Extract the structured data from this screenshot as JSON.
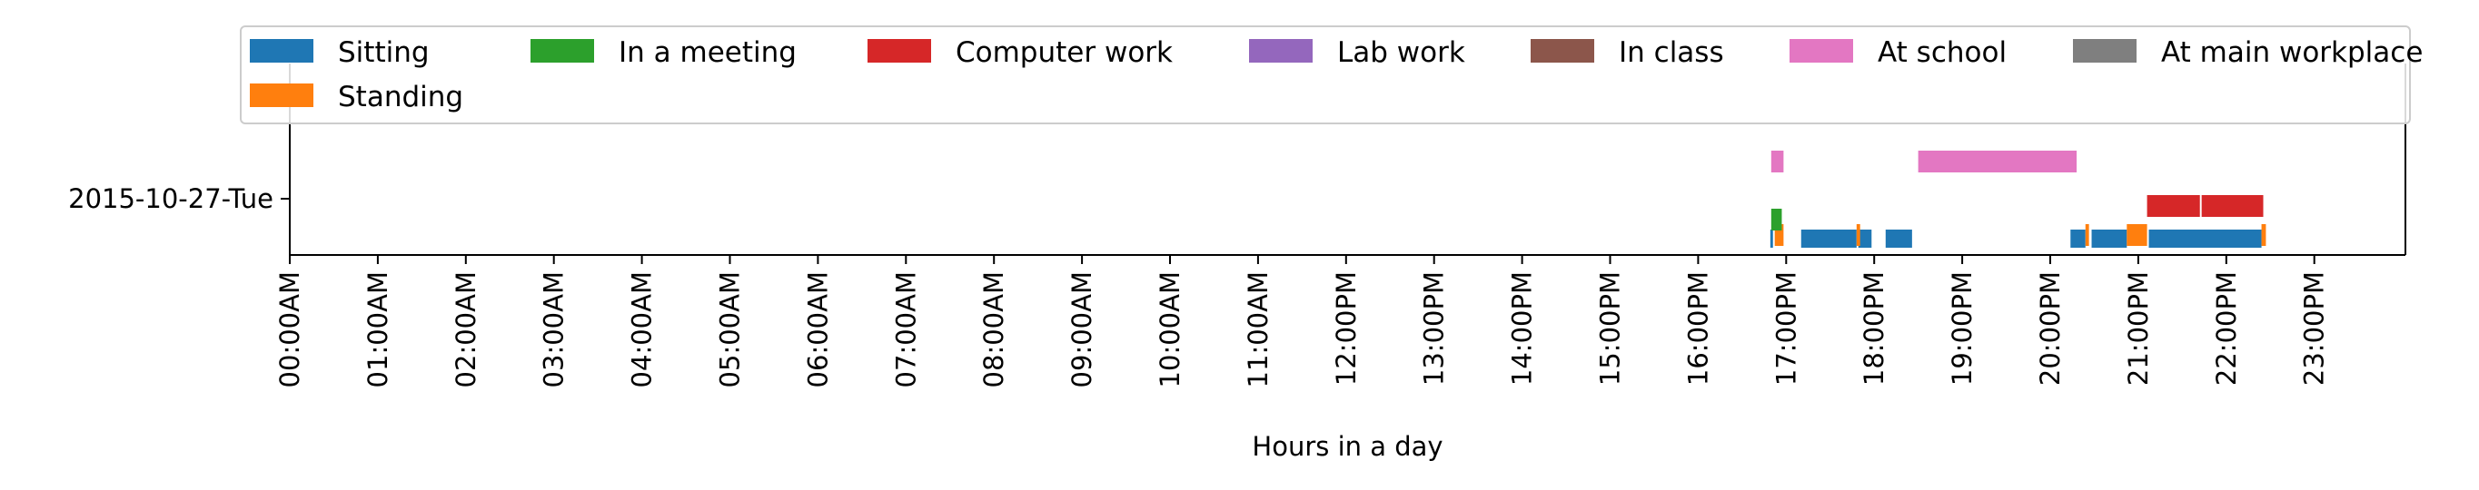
{
  "chart_data": {
    "type": "timeline",
    "title": "",
    "xlabel": "Hours in a day",
    "ylabel": "",
    "xlim": [
      0,
      24
    ],
    "x_ticks": [
      {
        "value": 0,
        "label": "00:00AM"
      },
      {
        "value": 1,
        "label": "01:00AM"
      },
      {
        "value": 2,
        "label": "02:00AM"
      },
      {
        "value": 3,
        "label": "03:00AM"
      },
      {
        "value": 4,
        "label": "04:00AM"
      },
      {
        "value": 5,
        "label": "05:00AM"
      },
      {
        "value": 6,
        "label": "06:00AM"
      },
      {
        "value": 7,
        "label": "07:00AM"
      },
      {
        "value": 8,
        "label": "08:00AM"
      },
      {
        "value": 9,
        "label": "09:00AM"
      },
      {
        "value": 10,
        "label": "10:00AM"
      },
      {
        "value": 11,
        "label": "11:00AM"
      },
      {
        "value": 12,
        "label": "12:00PM"
      },
      {
        "value": 13,
        "label": "13:00PM"
      },
      {
        "value": 14,
        "label": "14:00PM"
      },
      {
        "value": 15,
        "label": "15:00PM"
      },
      {
        "value": 16,
        "label": "16:00PM"
      },
      {
        "value": 17,
        "label": "17:00PM"
      },
      {
        "value": 18,
        "label": "18:00PM"
      },
      {
        "value": 19,
        "label": "19:00PM"
      },
      {
        "value": 20,
        "label": "20:00PM"
      },
      {
        "value": 21,
        "label": "21:00PM"
      },
      {
        "value": 22,
        "label": "22:00PM"
      },
      {
        "value": 23,
        "label": "23:00PM"
      }
    ],
    "y_categories": [
      "2015-10-27-Tue"
    ],
    "grid": false,
    "legend_position": "top",
    "series": [
      {
        "name": "Sitting",
        "color": "#1f77b4",
        "lane": 0,
        "intervals": [
          [
            16.82,
            16.85
          ],
          [
            17.17,
            17.8
          ],
          [
            17.82,
            17.97
          ],
          [
            18.13,
            18.43
          ],
          [
            20.23,
            20.4
          ],
          [
            20.47,
            20.87
          ],
          [
            21.12,
            22.4
          ]
        ]
      },
      {
        "name": "Standing",
        "color": "#ff7f0e",
        "lane": 1,
        "intervals": [
          [
            16.87,
            16.97
          ],
          [
            17.8,
            17.84
          ],
          [
            20.4,
            20.44
          ],
          [
            20.87,
            21.1
          ],
          [
            22.4,
            22.45
          ]
        ]
      },
      {
        "name": "In a meeting",
        "color": "#2ca02c",
        "lane": 2,
        "intervals": [
          [
            16.83,
            16.95
          ]
        ]
      },
      {
        "name": "Computer work",
        "color": "#d62728",
        "lane": 3,
        "intervals": [
          [
            21.1,
            21.7
          ],
          [
            21.72,
            22.42
          ]
        ]
      },
      {
        "name": "Lab work",
        "color": "#9467bd",
        "lane": 4,
        "intervals": []
      },
      {
        "name": "In class",
        "color": "#8c564b",
        "lane": 5,
        "intervals": []
      },
      {
        "name": "At school",
        "color": "#e377c2",
        "lane": 6,
        "intervals": [
          [
            16.83,
            16.97
          ],
          [
            18.5,
            20.3
          ]
        ]
      },
      {
        "name": "At main workplace",
        "color": "#7f7f7f",
        "lane": 7,
        "intervals": []
      }
    ]
  }
}
